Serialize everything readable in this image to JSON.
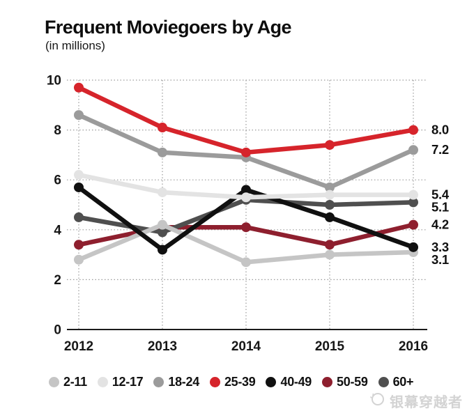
{
  "header": {
    "title": "Frequent Moviegoers by Age",
    "subtitle": "(in millions)"
  },
  "watermark": {
    "text": "银幕穿越者"
  },
  "chart_data": {
    "type": "line",
    "x": [
      "2012",
      "2013",
      "2014",
      "2015",
      "2016"
    ],
    "series": [
      {
        "name": "2-11",
        "color": "#c5c5c5",
        "values": [
          2.8,
          4.2,
          2.7,
          3.0,
          3.1
        ],
        "end_label": "3.1"
      },
      {
        "name": "12-17",
        "color": "#e3e3e3",
        "values": [
          6.2,
          5.5,
          5.3,
          5.4,
          5.4
        ],
        "end_label": "5.4"
      },
      {
        "name": "18-24",
        "color": "#9b9b9b",
        "values": [
          8.6,
          7.1,
          6.9,
          5.7,
          7.2
        ],
        "end_label": "7.2"
      },
      {
        "name": "25-39",
        "color": "#d6242b",
        "values": [
          9.7,
          8.1,
          7.1,
          7.4,
          8.0
        ],
        "end_label": "8.0"
      },
      {
        "name": "40-49",
        "color": "#101010",
        "values": [
          5.7,
          3.2,
          5.6,
          4.5,
          3.3
        ],
        "end_label": "3.3"
      },
      {
        "name": "50-59",
        "color": "#8e1f2e",
        "values": [
          3.4,
          4.1,
          4.1,
          3.4,
          4.2
        ],
        "end_label": "4.2"
      },
      {
        "name": "60+",
        "color": "#4f4f4f",
        "values": [
          4.5,
          3.9,
          5.2,
          5.0,
          5.1
        ],
        "end_label": "5.1"
      }
    ],
    "legend_order": [
      0,
      1,
      2,
      3,
      4,
      5,
      6
    ],
    "draw_order": [
      2,
      5,
      6,
      0,
      4,
      1,
      3
    ],
    "title": "Frequent Moviegoers by Age",
    "subtitle": "(in millions)",
    "xlabel": "",
    "ylabel": "",
    "ylim": [
      0,
      10
    ],
    "yticks": [
      0,
      2,
      4,
      6,
      8,
      10
    ],
    "grid": "dotted",
    "legend_position": "bottom",
    "colors": {
      "axis_text": "#161616",
      "baseline": "#1a1a1a",
      "gridline": "#9a9a9a"
    }
  }
}
